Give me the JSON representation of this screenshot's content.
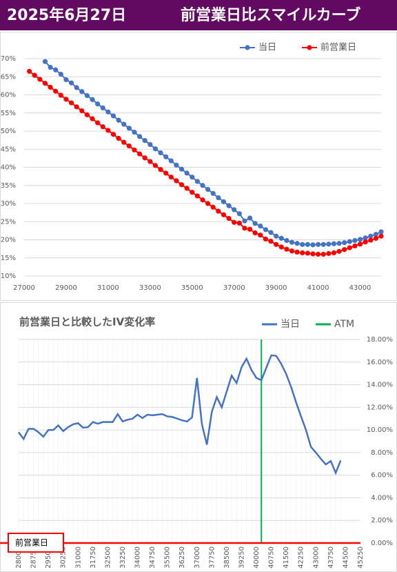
{
  "header": {
    "date": "2025年6月27日",
    "title": "前営業日比スマイルカーブ"
  },
  "chart_data": [
    {
      "type": "line",
      "markers": true,
      "grid": true,
      "legend": "top-right",
      "x": [
        27250,
        27500,
        27750,
        28000,
        28250,
        28500,
        28750,
        29000,
        29250,
        29500,
        29750,
        30000,
        30250,
        30500,
        30750,
        31000,
        31250,
        31500,
        31750,
        32000,
        32250,
        32500,
        32750,
        33000,
        33250,
        33500,
        33750,
        34000,
        34250,
        34500,
        34750,
        35000,
        35250,
        35500,
        35750,
        36000,
        36250,
        36500,
        36750,
        37000,
        37250,
        37500,
        37750,
        38000,
        38250,
        38500,
        38750,
        39000,
        39250,
        39500,
        39750,
        40000,
        40250,
        40500,
        40750,
        41000,
        41250,
        41500,
        41750,
        42000,
        42250,
        42500,
        42750,
        43000,
        43250,
        43500,
        43750,
        44000
      ],
      "series": [
        {
          "name": "当日",
          "color": "#4472c4",
          "values": [
            null,
            null,
            null,
            69.2,
            67.6,
            66.9,
            65.7,
            64.2,
            63.3,
            62.0,
            60.9,
            59.8,
            58.7,
            57.5,
            56.4,
            55.3,
            54.2,
            53.0,
            51.9,
            50.8,
            49.7,
            48.5,
            47.4,
            46.3,
            45.1,
            44.0,
            42.9,
            41.8,
            40.6,
            39.5,
            38.4,
            37.3,
            36.1,
            35.0,
            33.9,
            32.8,
            31.6,
            30.5,
            29.4,
            28.3,
            27.2,
            25.2,
            26.0,
            24.5,
            23.8,
            22.8,
            22.0,
            21.0,
            20.4,
            19.8,
            19.3,
            19.0,
            18.7,
            18.7,
            18.6,
            18.7,
            18.7,
            18.8,
            18.9,
            19.0,
            19.2,
            19.5,
            19.8,
            20.1,
            20.5,
            21.0,
            21.5,
            22.2
          ]
        },
        {
          "name": "前営業日",
          "color": "#ff0000",
          "values": [
            66.5,
            65.4,
            64.3,
            63.2,
            62.1,
            61.0,
            59.9,
            58.8,
            57.8,
            56.7,
            55.6,
            54.5,
            53.4,
            52.3,
            51.2,
            50.2,
            49.1,
            48.0,
            46.9,
            45.9,
            44.8,
            43.7,
            42.6,
            41.6,
            40.5,
            39.4,
            38.4,
            37.3,
            36.3,
            35.2,
            34.2,
            33.1,
            32.1,
            31.0,
            30.0,
            29.0,
            27.9,
            26.9,
            25.9,
            24.8,
            24.6,
            23.2,
            22.9,
            21.9,
            21.3,
            20.2,
            19.6,
            18.7,
            18.0,
            17.4,
            16.9,
            16.6,
            16.4,
            16.3,
            16.1,
            16.0,
            16.0,
            16.2,
            16.4,
            16.8,
            17.3,
            17.8,
            18.3,
            18.8,
            19.4,
            19.9,
            20.4,
            21.0
          ]
        }
      ],
      "xlim": [
        27000,
        44000
      ],
      "xticks": [
        27000,
        29000,
        31000,
        33000,
        35000,
        37000,
        39000,
        41000,
        43000
      ],
      "ylim": [
        10,
        70
      ],
      "yticks": [
        {
          "value": 10,
          "label": "10%"
        },
        {
          "value": 15,
          "label": "15%"
        },
        {
          "value": 20,
          "label": "20%"
        },
        {
          "value": 25,
          "label": "25%"
        },
        {
          "value": 30,
          "label": "30%"
        },
        {
          "value": 35,
          "label": "35%"
        },
        {
          "value": 40,
          "label": "40%"
        },
        {
          "value": 45,
          "label": "45%"
        },
        {
          "value": 50,
          "label": "50%"
        },
        {
          "value": 55,
          "label": "55%"
        },
        {
          "value": 60,
          "label": "60%"
        },
        {
          "value": 65,
          "label": "65%"
        },
        {
          "value": 70,
          "label": "70%"
        }
      ]
    },
    {
      "type": "line",
      "markers": false,
      "grid": true,
      "legend": "top-right",
      "title": "前営業日と比較したIV変化率",
      "x": [
        28000,
        28250,
        28500,
        28750,
        29000,
        29250,
        29500,
        29750,
        30000,
        30250,
        30500,
        30750,
        31000,
        31250,
        31500,
        31750,
        32000,
        32250,
        32500,
        32750,
        33000,
        33250,
        33500,
        33750,
        34000,
        34250,
        34500,
        34750,
        35000,
        35250,
        35500,
        35750,
        36000,
        36250,
        36500,
        36750,
        37000,
        37250,
        37500,
        37750,
        38000,
        38250,
        38500,
        38750,
        39000,
        39250,
        39500,
        39750,
        40000,
        40250,
        40500,
        40750,
        41000,
        41250,
        41500,
        41750,
        42000,
        42250,
        42500,
        42750,
        43000,
        43250,
        43500,
        43750,
        44000,
        44250
      ],
      "series": [
        {
          "name": "当日",
          "color": "#4472c4",
          "values": [
            9.8,
            9.2,
            10.1,
            10.1,
            9.8,
            9.4,
            10.0,
            10.0,
            10.4,
            9.9,
            10.25,
            10.5,
            10.6,
            10.2,
            10.25,
            10.7,
            10.55,
            10.7,
            10.7,
            10.7,
            11.4,
            10.75,
            10.9,
            11.0,
            11.35,
            11.05,
            11.35,
            11.3,
            11.35,
            11.4,
            11.2,
            11.15,
            11.0,
            10.85,
            10.75,
            11.1,
            14.6,
            10.5,
            8.7,
            11.6,
            12.9,
            12.0,
            13.4,
            14.8,
            14.15,
            15.55,
            16.3,
            15.3,
            14.6,
            14.4,
            15.5,
            16.6,
            16.55,
            15.85,
            14.95,
            13.8,
            12.45,
            11.2,
            10.0,
            8.5,
            8.0,
            7.45,
            6.95,
            7.25,
            6.2,
            7.3
          ]
        }
      ],
      "atm": {
        "name": "ATM",
        "color": "#00b050",
        "x": 40250
      },
      "reference": {
        "label": "前営業日",
        "value": 0,
        "color": "#ff0000"
      },
      "xlim": [
        28000,
        45250
      ],
      "xticks": [
        28000,
        28750,
        29500,
        30250,
        31000,
        31750,
        32500,
        33250,
        34000,
        34750,
        35500,
        36250,
        37000,
        37750,
        38500,
        39250,
        40000,
        40750,
        41500,
        42250,
        43000,
        43750,
        44500,
        45250
      ],
      "ylim": [
        0,
        18
      ],
      "yticks": [
        {
          "value": 0,
          "label": "0.00%"
        },
        {
          "value": 2,
          "label": "2.00%"
        },
        {
          "value": 4,
          "label": "4.00%"
        },
        {
          "value": 6,
          "label": "6.00%"
        },
        {
          "value": 8,
          "label": "8.00%"
        },
        {
          "value": 10,
          "label": "10.00%"
        },
        {
          "value": 12,
          "label": "12.00%"
        },
        {
          "value": 14,
          "label": "14.00%"
        },
        {
          "value": 16,
          "label": "16.00%"
        },
        {
          "value": 18,
          "label": "18.00%"
        }
      ]
    }
  ]
}
